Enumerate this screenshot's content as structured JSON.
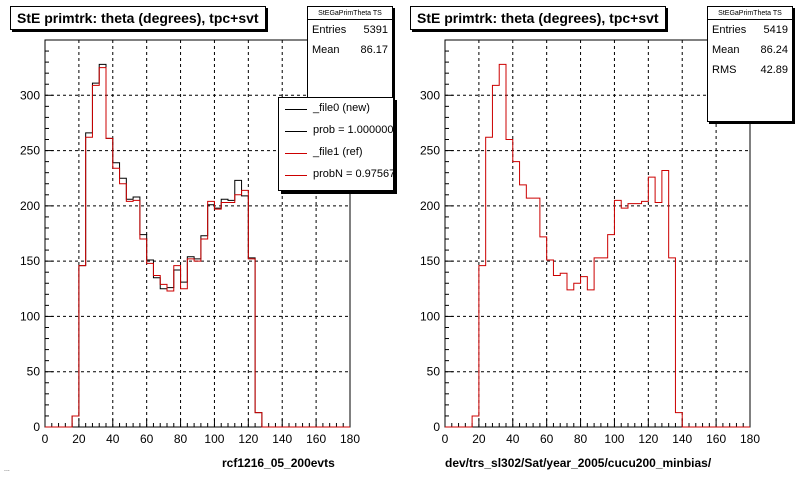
{
  "chart_data": [
    {
      "type": "histogram",
      "title": "StE primtrk: theta (degrees), tpc+svt",
      "xlabel": "rcf1216_05_200evts",
      "xlim": [
        0,
        180
      ],
      "ylim": [
        0,
        350
      ],
      "xticks": [
        0,
        20,
        40,
        60,
        80,
        100,
        120,
        140,
        160,
        180
      ],
      "yticks": [
        0,
        50,
        100,
        150,
        200,
        250,
        300
      ],
      "grid": true,
      "bin_width": 4,
      "bin_start": 0,
      "stats": {
        "name": "StEGaPrimTheta TS",
        "entries_label": "Entries",
        "entries": "5391",
        "mean_label": "Mean",
        "mean": "86.17"
      },
      "legend": {
        "position": "top-right",
        "entries": [
          {
            "label": "_file0 (new)",
            "color": "#000000"
          },
          {
            "label": "prob = 1.000000",
            "color": "#000000"
          },
          {
            "label": "_file1 (ref)",
            "color": "#cc0000"
          },
          {
            "label": "probN = 0.975670",
            "color": "#cc0000"
          }
        ]
      },
      "series": [
        {
          "color": "#000000",
          "values": [
            0,
            0,
            0,
            0,
            10,
            146,
            266,
            311,
            328,
            261,
            239,
            225,
            206,
            208,
            174,
            151,
            135,
            125,
            126,
            142,
            131,
            154,
            152,
            173,
            201,
            198,
            206,
            205,
            223,
            209,
            153,
            13,
            0,
            0,
            0,
            0,
            0,
            0,
            0,
            0,
            0,
            0,
            0,
            0,
            0
          ]
        },
        {
          "color": "#cc0000",
          "values": [
            0,
            0,
            0,
            0,
            10,
            146,
            262,
            309,
            325,
            261,
            234,
            220,
            204,
            205,
            170,
            148,
            137,
            129,
            123,
            146,
            125,
            152,
            150,
            170,
            204,
            197,
            203,
            203,
            210,
            214,
            152,
            13,
            0,
            0,
            0,
            0,
            0,
            0,
            0,
            0,
            0,
            0,
            0,
            0,
            0
          ]
        }
      ]
    },
    {
      "type": "histogram",
      "title": "StE primtrk: theta (degrees), tpc+svt",
      "xlabel": "dev/trs_sl302/Sat/year_2005/cucu200_minbias/",
      "xlim": [
        0,
        180
      ],
      "ylim": [
        0,
        350
      ],
      "xticks": [
        0,
        20,
        40,
        60,
        80,
        100,
        120,
        140,
        160,
        180
      ],
      "yticks": [
        0,
        50,
        100,
        150,
        200,
        250,
        300
      ],
      "grid": true,
      "bin_width": 4,
      "bin_start": 0,
      "stats": {
        "name": "StEGaPrimTheta TS",
        "entries_label": "Entries",
        "entries": "5419",
        "mean_label": "Mean",
        "mean": "86.24",
        "rms_label": "RMS",
        "rms": "42.89"
      },
      "series": [
        {
          "color": "#cc0000",
          "values": [
            0,
            0,
            0,
            0,
            10,
            146,
            262,
            309,
            328,
            260,
            240,
            219,
            207,
            207,
            172,
            151,
            137,
            139,
            124,
            130,
            136,
            124,
            153,
            153,
            174,
            205,
            198,
            202,
            202,
            204,
            226,
            203,
            232,
            153,
            13,
            0,
            0,
            0,
            0,
            0,
            0,
            0,
            0,
            0,
            0
          ]
        }
      ]
    }
  ],
  "footer_text": "..."
}
